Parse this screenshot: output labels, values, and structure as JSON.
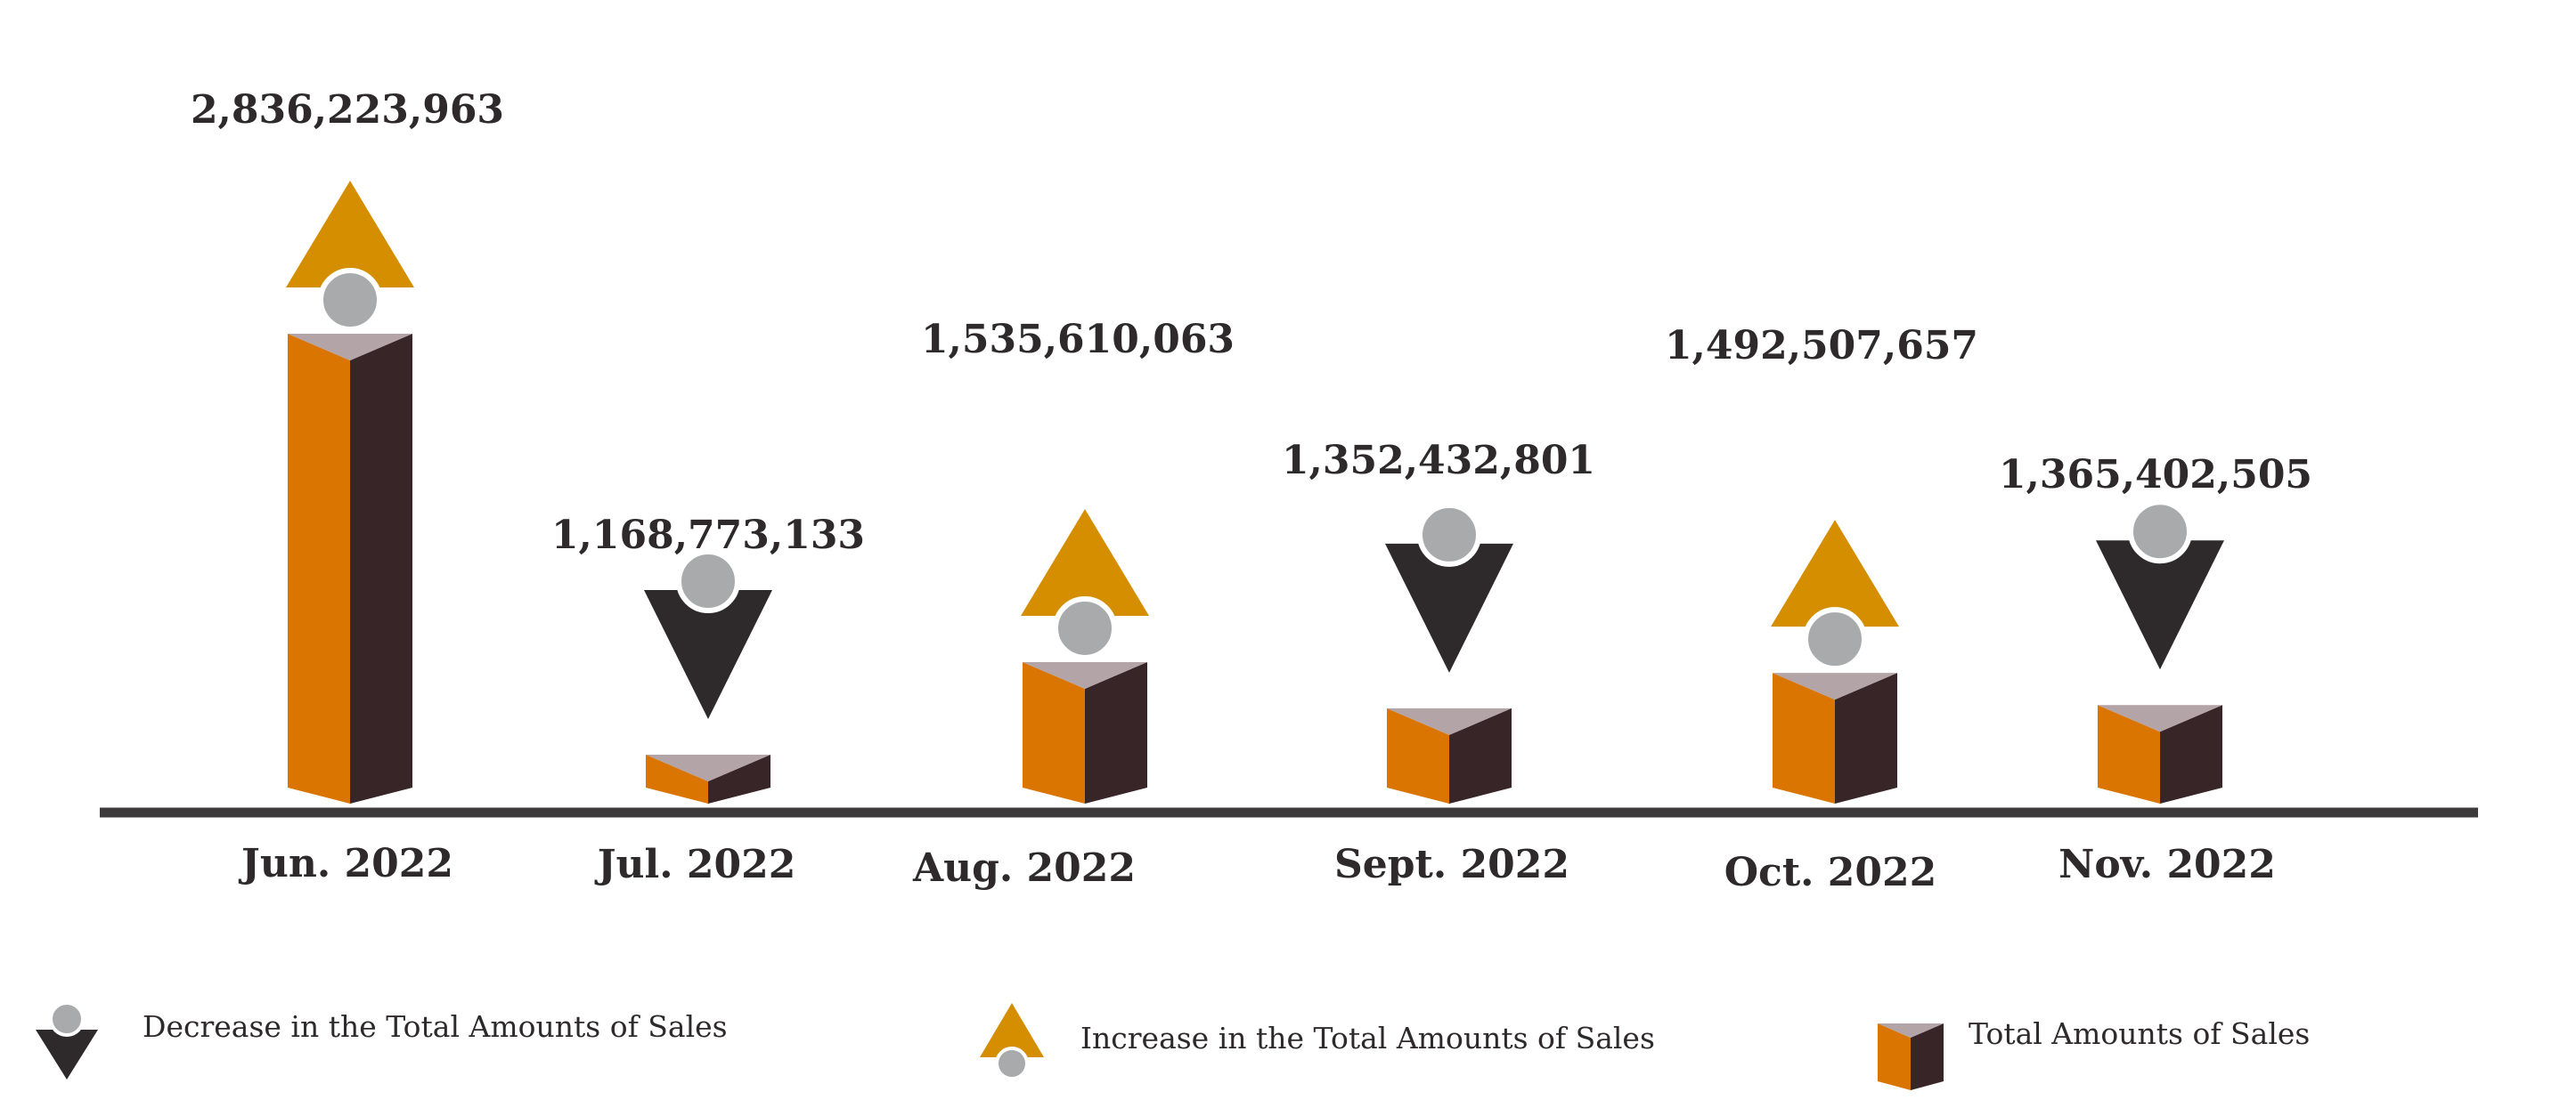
{
  "chart_data": {
    "type": "bar",
    "title": "",
    "xlabel": "",
    "ylabel": "",
    "categories": [
      "Jun. 2022",
      "Jul. 2022",
      "Aug. 2022",
      "Sept. 2022",
      "Oct. 2022",
      "Nov. 2022"
    ],
    "values": [
      2836223963,
      1168773133,
      1535610063,
      1352432801,
      1492507657,
      1365402505
    ],
    "value_labels": [
      "2,836,223,963",
      "1,168,773,133",
      "1,535,610,063",
      "1,352,432,801",
      "1,492,507,657",
      "1,365,402,505"
    ],
    "trend": [
      "increase",
      "decrease",
      "increase",
      "decrease",
      "increase",
      "decrease"
    ],
    "colors": {
      "bar_front": "#d97500",
      "bar_side": "#382528",
      "bar_top": "#b3a4a8",
      "increase": "#d48e00",
      "decrease": "#2e2a2b",
      "circle": "#a9aaac",
      "axis": "#3d3a3b"
    },
    "legend": {
      "placement": "bottom",
      "items": [
        {
          "type": "decrease",
          "label": "Decrease in the Total Amounts of Sales"
        },
        {
          "type": "increase",
          "label": "Increase in the Total Amounts of Sales"
        },
        {
          "type": "total",
          "label": "Total Amounts of Sales"
        }
      ]
    }
  }
}
